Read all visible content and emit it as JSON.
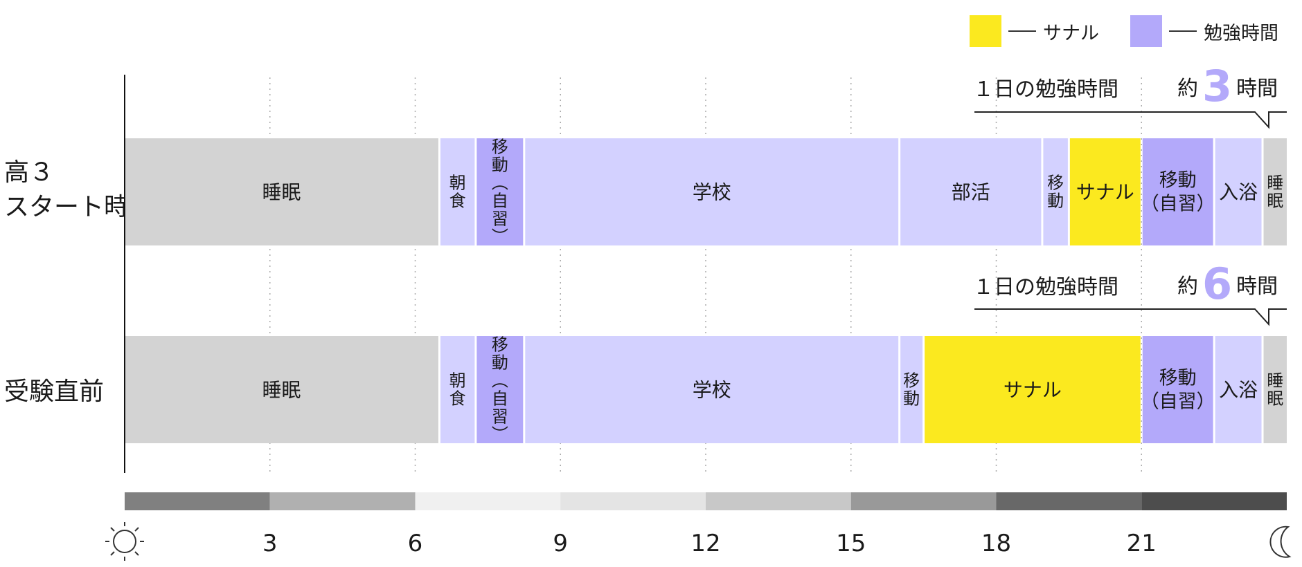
{
  "legend": [
    {
      "label": "サナル",
      "color": "#fbe91f"
    },
    {
      "label": "勉強時間",
      "color": "#b3a9fa"
    }
  ],
  "colors": {
    "sleep": "#d3d3d3",
    "activity": "#d3d1ff",
    "study": "#b3a9fa",
    "sanaru": "#fbe91f",
    "accent_number": "#b3a9fa"
  },
  "rows": [
    {
      "label_lines": [
        "高３",
        "スタート時"
      ],
      "study_prefix": "１日の勉強時間",
      "study_about": "約",
      "study_hours": "3",
      "study_unit": "時間"
    },
    {
      "label_lines": [
        "受験直前"
      ],
      "study_prefix": "１日の勉強時間",
      "study_about": "約",
      "study_hours": "6",
      "study_unit": "時間"
    }
  ],
  "chart_data": {
    "type": "bar",
    "orientation": "horizontal-timeline",
    "x_unit": "hour of day",
    "xlim": [
      0,
      24
    ],
    "xticks": [
      3,
      6,
      9,
      12,
      15,
      18,
      21
    ],
    "start_icon": "sun-icon",
    "end_icon": "moon-icon",
    "time_of_day_band": [
      {
        "from": 0,
        "to": 3,
        "color": "#808080"
      },
      {
        "from": 3,
        "to": 6,
        "color": "#b0b0b0"
      },
      {
        "from": 6,
        "to": 9,
        "color": "#f0f0f0"
      },
      {
        "from": 9,
        "to": 12,
        "color": "#e4e4e4"
      },
      {
        "from": 12,
        "to": 15,
        "color": "#c8c8c8"
      },
      {
        "from": 15,
        "to": 18,
        "color": "#999999"
      },
      {
        "from": 18,
        "to": 21,
        "color": "#686868"
      },
      {
        "from": 21,
        "to": 24,
        "color": "#4d4d4d"
      }
    ],
    "series": [
      {
        "segments": [
          {
            "start": 0,
            "end": 6.5,
            "label": "睡眠",
            "kind": "sleep",
            "text": "h"
          },
          {
            "start": 6.5,
            "end": 7.25,
            "label": "朝食",
            "kind": "activity",
            "text": "v"
          },
          {
            "start": 7.25,
            "end": 8.25,
            "label": "移動（自習）",
            "kind": "study",
            "text": "v"
          },
          {
            "start": 8.25,
            "end": 16,
            "label": "学校",
            "kind": "activity",
            "text": "h"
          },
          {
            "start": 16,
            "end": 18.95,
            "label": "部活",
            "kind": "activity",
            "text": "h"
          },
          {
            "start": 18.95,
            "end": 19.5,
            "label": "移動",
            "kind": "activity",
            "text": "v"
          },
          {
            "start": 19.5,
            "end": 21,
            "label": "サナル",
            "kind": "sanaru",
            "text": "h"
          },
          {
            "start": 21,
            "end": 22.5,
            "label": "移動（自習）",
            "kind": "study",
            "text": "h2"
          },
          {
            "start": 22.5,
            "end": 23.5,
            "label": "入浴",
            "kind": "activity",
            "text": "h"
          },
          {
            "start": 23.5,
            "end": 24,
            "label": "睡眠",
            "kind": "sleep",
            "text": "v"
          }
        ]
      },
      {
        "segments": [
          {
            "start": 0,
            "end": 6.5,
            "label": "睡眠",
            "kind": "sleep",
            "text": "h"
          },
          {
            "start": 6.5,
            "end": 7.25,
            "label": "朝食",
            "kind": "activity",
            "text": "v"
          },
          {
            "start": 7.25,
            "end": 8.25,
            "label": "移動（自習）",
            "kind": "study",
            "text": "v"
          },
          {
            "start": 8.25,
            "end": 16,
            "label": "学校",
            "kind": "activity",
            "text": "h"
          },
          {
            "start": 16,
            "end": 16.5,
            "label": "移動",
            "kind": "activity",
            "text": "v"
          },
          {
            "start": 16.5,
            "end": 21,
            "label": "サナル",
            "kind": "sanaru",
            "text": "h"
          },
          {
            "start": 21,
            "end": 22.5,
            "label": "移動（自習）",
            "kind": "study",
            "text": "h2"
          },
          {
            "start": 22.5,
            "end": 23.5,
            "label": "入浴",
            "kind": "activity",
            "text": "h"
          },
          {
            "start": 23.5,
            "end": 24,
            "label": "睡眠",
            "kind": "sleep",
            "text": "v"
          }
        ]
      }
    ]
  }
}
